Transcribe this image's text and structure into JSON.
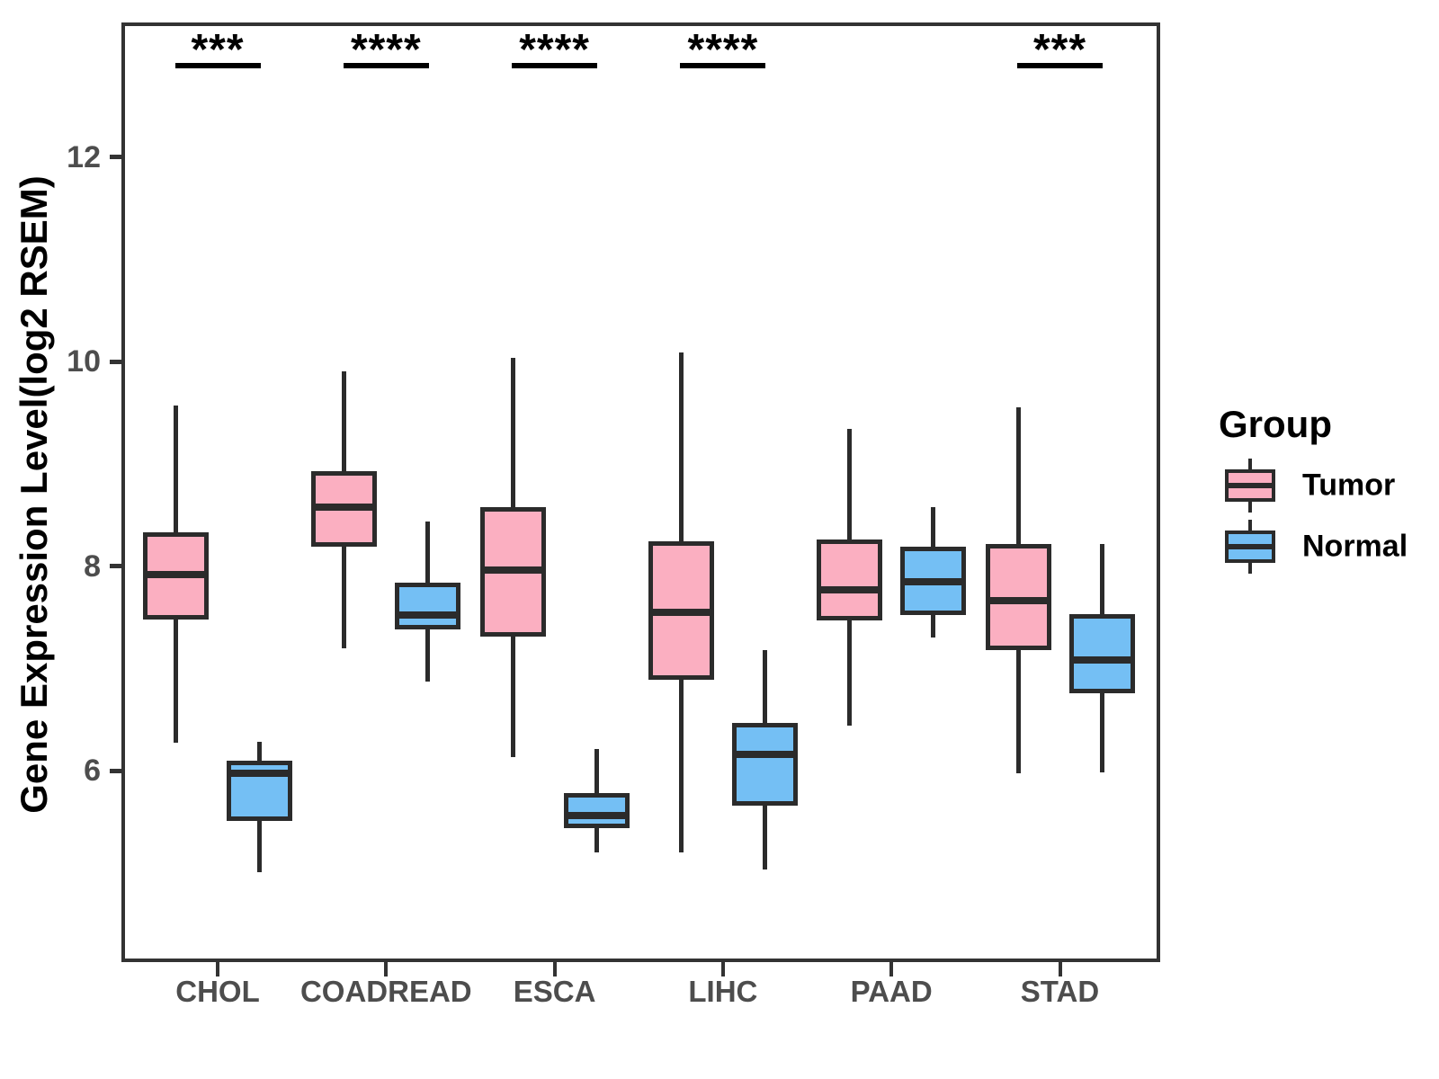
{
  "figure": {
    "background": "#ffffff"
  },
  "chart_data": {
    "type": "boxplot",
    "title": "",
    "ylabel": "Gene Expression Level(log2 RSEM)",
    "xlabel": "",
    "categories": [
      "CHOL",
      "COADREAD",
      "ESCA",
      "LIHC",
      "PAAD",
      "STAD"
    ],
    "groups": [
      {
        "name": "Tumor",
        "color": "#FBAFC1"
      },
      {
        "name": "Normal",
        "color": "#74BFF4"
      }
    ],
    "y_ticks": [
      6,
      8,
      10,
      12
    ],
    "ylim": [
      4.15,
      13.3
    ],
    "grid": false,
    "legend_position": "right",
    "series": [
      {
        "category": "CHOL",
        "group": "Tumor",
        "whisker_low": 6.27,
        "q1": 7.48,
        "median": 7.92,
        "q3": 8.33,
        "whisker_high": 9.57
      },
      {
        "category": "CHOL",
        "group": "Normal",
        "whisker_low": 5.01,
        "q1": 5.51,
        "median": 5.97,
        "q3": 6.1,
        "whisker_high": 6.28
      },
      {
        "category": "COADREAD",
        "group": "Tumor",
        "whisker_low": 7.2,
        "q1": 8.19,
        "median": 8.58,
        "q3": 8.93,
        "whisker_high": 9.91
      },
      {
        "category": "COADREAD",
        "group": "Normal",
        "whisker_low": 6.87,
        "q1": 7.38,
        "median": 7.52,
        "q3": 7.84,
        "whisker_high": 8.44
      },
      {
        "category": "ESCA",
        "group": "Tumor",
        "whisker_low": 6.13,
        "q1": 7.31,
        "median": 7.96,
        "q3": 8.58,
        "whisker_high": 10.04
      },
      {
        "category": "ESCA",
        "group": "Normal",
        "whisker_low": 5.2,
        "q1": 5.44,
        "median": 5.56,
        "q3": 5.78,
        "whisker_high": 6.21
      },
      {
        "category": "LIHC",
        "group": "Tumor",
        "whisker_low": 5.2,
        "q1": 6.89,
        "median": 7.55,
        "q3": 8.24,
        "whisker_high": 10.09
      },
      {
        "category": "LIHC",
        "group": "Normal",
        "whisker_low": 5.03,
        "q1": 5.66,
        "median": 6.16,
        "q3": 6.47,
        "whisker_high": 7.18
      },
      {
        "category": "PAAD",
        "group": "Tumor",
        "whisker_low": 6.44,
        "q1": 7.47,
        "median": 7.77,
        "q3": 8.26,
        "whisker_high": 9.34
      },
      {
        "category": "PAAD",
        "group": "Normal",
        "whisker_low": 7.3,
        "q1": 7.52,
        "median": 7.85,
        "q3": 8.19,
        "whisker_high": 8.58
      },
      {
        "category": "STAD",
        "group": "Tumor",
        "whisker_low": 5.97,
        "q1": 7.18,
        "median": 7.66,
        "q3": 8.22,
        "whisker_high": 9.55
      },
      {
        "category": "STAD",
        "group": "Normal",
        "whisker_low": 5.98,
        "q1": 6.76,
        "median": 7.08,
        "q3": 7.53,
        "whisker_high": 8.22
      }
    ],
    "significance": [
      {
        "category": "CHOL",
        "label": "***"
      },
      {
        "category": "COADREAD",
        "label": "****"
      },
      {
        "category": "ESCA",
        "label": "****"
      },
      {
        "category": "LIHC",
        "label": "****"
      },
      {
        "category": "PAAD",
        "label": ""
      },
      {
        "category": "STAD",
        "label": "***"
      }
    ]
  },
  "legend": {
    "title": "Group",
    "items": [
      {
        "label": "Tumor"
      },
      {
        "label": "Normal"
      }
    ]
  },
  "colors": {
    "box_border": "#2B2B2B",
    "panel_border": "#333333",
    "axis_text": "#4D4D4D",
    "significance": "#000000"
  }
}
